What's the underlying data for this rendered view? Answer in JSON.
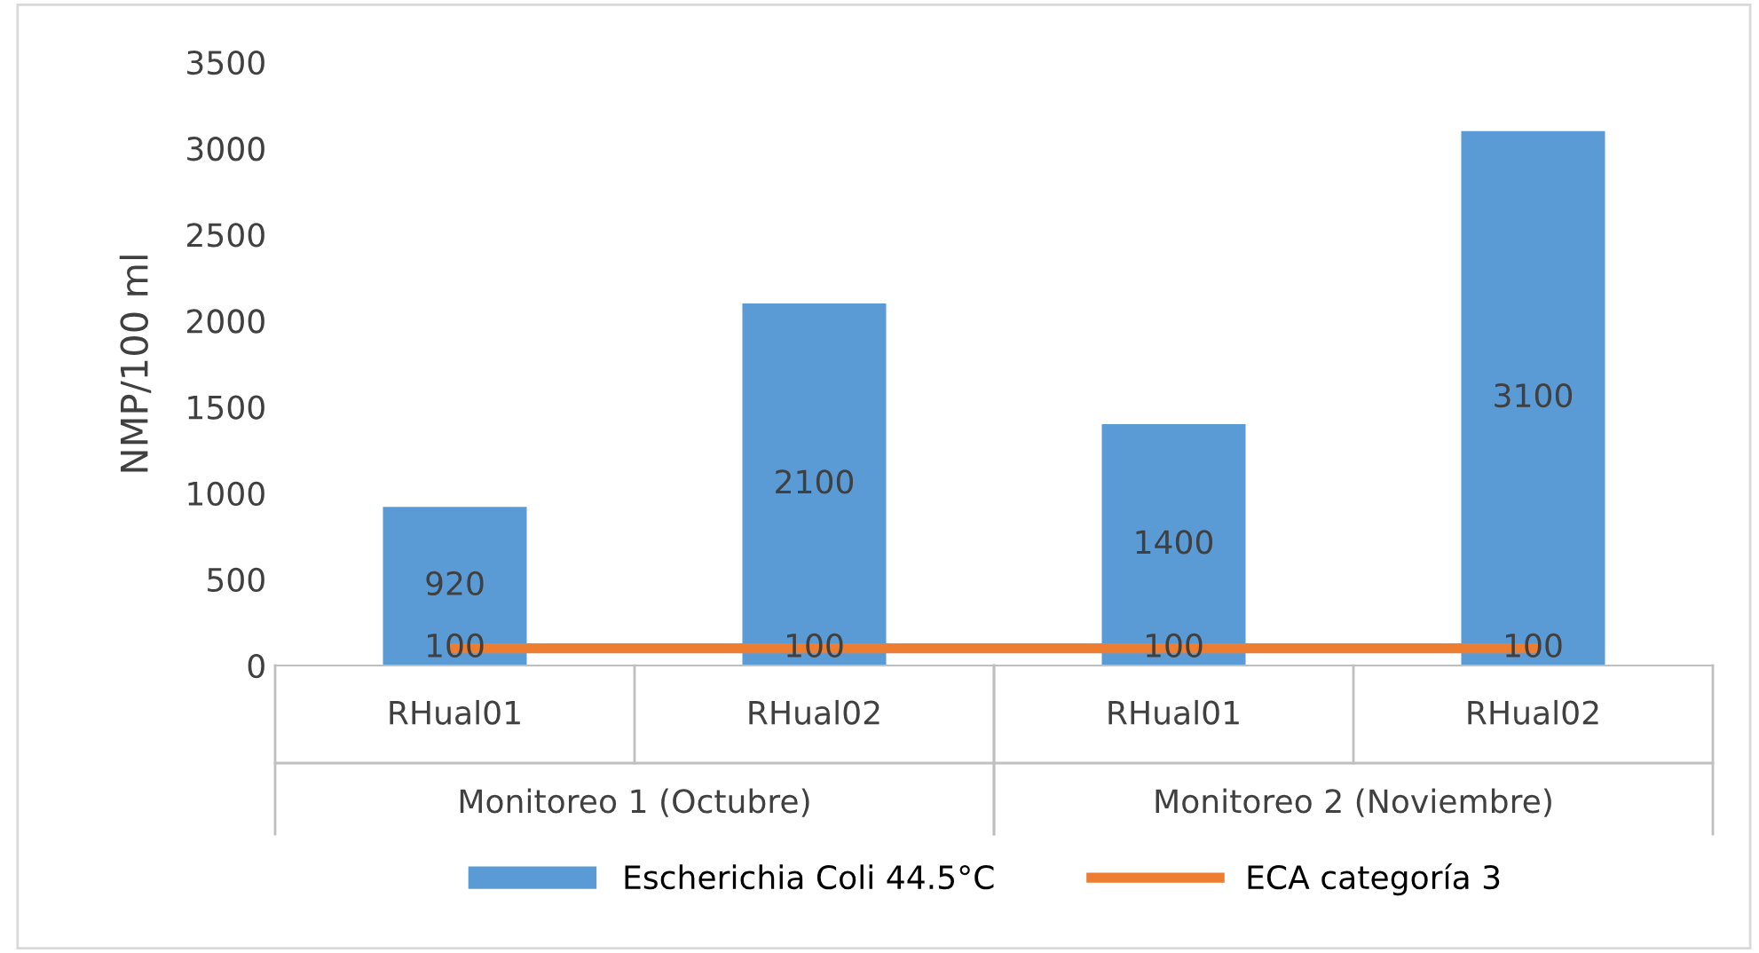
{
  "chart_data": {
    "type": "bar",
    "ylabel": "NMP/100 ml",
    "categories": [
      "RHual01",
      "RHual02",
      "RHual01",
      "RHual02"
    ],
    "series": [
      {
        "name": "Escherichia Coli 44.5°C",
        "color": "#5b9bd5",
        "values": [
          920,
          2100,
          1400,
          3100
        ]
      },
      {
        "name": "ECA categoría 3",
        "type": "line",
        "color": "#ed7d31",
        "values": [
          100,
          100,
          100,
          100
        ]
      }
    ],
    "annotations": [
      "Monitoreo 1 (Octubre)",
      "Monitoreo 2 (Noviembre)"
    ],
    "ylim": [
      0,
      3500
    ],
    "yticks": [
      0,
      500,
      1000,
      1500,
      2000,
      2500,
      3000,
      3500
    ],
    "data_labels": true,
    "grid": false,
    "legend": "bottom",
    "marker": "none"
  }
}
